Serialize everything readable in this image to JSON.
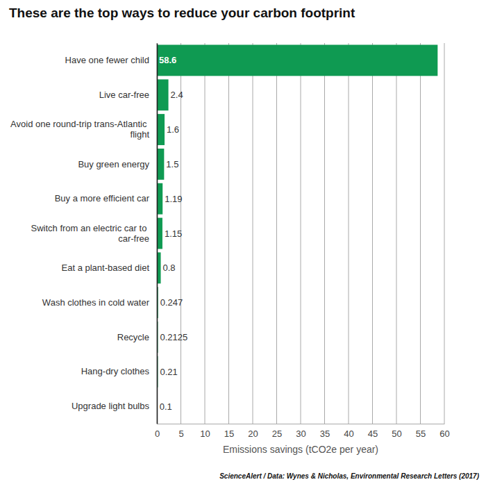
{
  "chart_data": {
    "type": "bar",
    "orientation": "horizontal",
    "title": "These are the top ways to reduce your carbon footprint",
    "categories": [
      "Have one fewer child",
      "Live car-free",
      "Avoid one round-trip trans-Atlantic flight",
      "Buy green energy",
      "Buy a more efficient car",
      "Switch from an electric car to car-free",
      "Eat a plant-based diet",
      "Wash clothes in cold water",
      "Recycle",
      "Hang-dry clothes",
      "Upgrade light bulbs"
    ],
    "values": [
      58.6,
      2.4,
      1.6,
      1.5,
      1.19,
      1.15,
      0.8,
      0.247,
      0.2125,
      0.21,
      0.1
    ],
    "color": "#0f9a52",
    "xlabel": "Emissions savings (tCO2e per year)",
    "xlim": [
      0,
      60
    ],
    "xticks": [
      0,
      5,
      10,
      15,
      20,
      25,
      30,
      35,
      40,
      45,
      50,
      55,
      60
    ],
    "grid": true,
    "data_labels": true,
    "source": "ScienceAlert / Data: Wynes & Nicholas, Environmental Research Letters (2017)"
  }
}
